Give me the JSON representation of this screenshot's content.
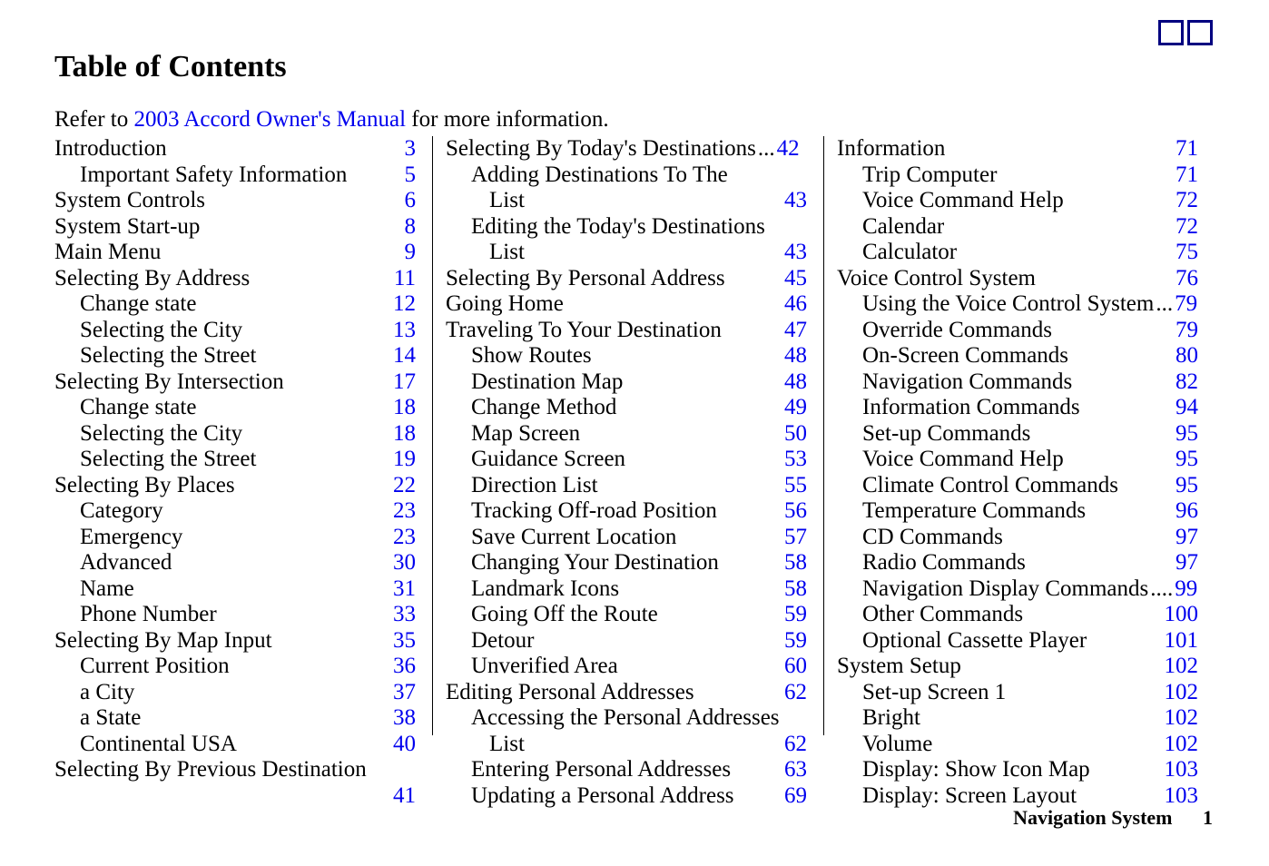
{
  "title": "Table of Contents",
  "refer_prefix": "Refer to ",
  "refer_link": "2003 Accord Owner's Manual",
  "refer_suffix": " for more information.",
  "footer_label": "Navigation System",
  "footer_page": "1",
  "columns": [
    [
      {
        "label": "Introduction",
        "page": "3",
        "indent": 0
      },
      {
        "label": "Important Safety Information",
        "page": "5",
        "indent": 1
      },
      {
        "label": "System Controls",
        "page": "6",
        "indent": 0
      },
      {
        "label": "System Start-up",
        "page": "8",
        "indent": 0
      },
      {
        "label": "Main Menu",
        "page": "9",
        "indent": 0
      },
      {
        "label": "Selecting By Address",
        "page": "11",
        "indent": 0
      },
      {
        "label": "Change state",
        "page": "12",
        "indent": 1
      },
      {
        "label": "Selecting the City",
        "page": "13",
        "indent": 1
      },
      {
        "label": "Selecting the Street",
        "page": "14",
        "indent": 1
      },
      {
        "label": "Selecting By Intersection",
        "page": "17",
        "indent": 0
      },
      {
        "label": "Change state",
        "page": "18",
        "indent": 1
      },
      {
        "label": "Selecting the City",
        "page": "18",
        "indent": 1
      },
      {
        "label": "Selecting the Street",
        "page": "19",
        "indent": 1
      },
      {
        "label": "Selecting By Places",
        "page": "22",
        "indent": 0
      },
      {
        "label": "Category",
        "page": "23",
        "indent": 1
      },
      {
        "label": "Emergency",
        "page": "23",
        "indent": 1
      },
      {
        "label": "Advanced",
        "page": "30",
        "indent": 1
      },
      {
        "label": "Name",
        "page": "31",
        "indent": 1
      },
      {
        "label": "Phone Number",
        "page": "33",
        "indent": 1
      },
      {
        "label": "Selecting By Map Input",
        "page": "35",
        "indent": 0
      },
      {
        "label": "Current Position",
        "page": "36",
        "indent": 1
      },
      {
        "label": "a City",
        "page": "37",
        "indent": 1
      },
      {
        "label": "a State",
        "page": "38",
        "indent": 1
      },
      {
        "label": "Continental USA",
        "page": "40",
        "indent": 1
      },
      {
        "label": "Selecting By Previous Destination",
        "page": "",
        "indent": 0,
        "nowrap": true,
        "nodots": true
      },
      {
        "label": "",
        "page": "41",
        "indent": 1
      }
    ],
    [
      {
        "label": "Selecting By Today's Destinations",
        "page": "42",
        "indent": 0,
        "tight": true
      },
      {
        "label": "Adding Destinations To The",
        "page": "",
        "indent": 1,
        "nodots": true
      },
      {
        "label": "List",
        "page": "43",
        "indent": 2
      },
      {
        "label": "Editing the Today's Destinations",
        "page": "",
        "indent": 1,
        "nodots": true
      },
      {
        "label": "List",
        "page": "43",
        "indent": 2
      },
      {
        "label": "Selecting By Personal Address",
        "page": "45",
        "indent": 0
      },
      {
        "label": "Going Home",
        "page": "46",
        "indent": 0
      },
      {
        "label": "Traveling To Your Destination",
        "page": "47",
        "indent": 0
      },
      {
        "label": "Show Routes",
        "page": "48",
        "indent": 1
      },
      {
        "label": "Destination Map",
        "page": "48",
        "indent": 1
      },
      {
        "label": "Change Method",
        "page": "49",
        "indent": 1
      },
      {
        "label": "Map Screen",
        "page": "50",
        "indent": 1
      },
      {
        "label": "Guidance Screen",
        "page": "53",
        "indent": 1
      },
      {
        "label": "Direction List",
        "page": "55",
        "indent": 1
      },
      {
        "label": "Tracking Off-road Position",
        "page": "56",
        "indent": 1
      },
      {
        "label": "Save Current Location",
        "page": "57",
        "indent": 1
      },
      {
        "label": "Changing Your Destination",
        "page": "58",
        "indent": 1
      },
      {
        "label": "Landmark Icons",
        "page": "58",
        "indent": 1
      },
      {
        "label": "Going Off the Route",
        "page": "59",
        "indent": 1
      },
      {
        "label": "Detour",
        "page": "59",
        "indent": 1
      },
      {
        "label": "Unverified Area",
        "page": "60",
        "indent": 1
      },
      {
        "label": "Editing Personal Addresses",
        "page": "62",
        "indent": 0
      },
      {
        "label": "Accessing the Personal Addresses",
        "page": "",
        "indent": 1,
        "nodots": true
      },
      {
        "label": "List",
        "page": "62",
        "indent": 2
      },
      {
        "label": "Entering Personal Addresses",
        "page": "63",
        "indent": 1
      },
      {
        "label": "Updating a Personal Address",
        "page": "69",
        "indent": 1
      }
    ],
    [
      {
        "label": "Information",
        "page": "71",
        "indent": 0
      },
      {
        "label": "Trip Computer",
        "page": "71",
        "indent": 1
      },
      {
        "label": "Voice Command Help",
        "page": "72",
        "indent": 1
      },
      {
        "label": "Calendar",
        "page": "72",
        "indent": 1
      },
      {
        "label": "Calculator",
        "page": "75",
        "indent": 1
      },
      {
        "label": "Voice Control System",
        "page": "76",
        "indent": 0
      },
      {
        "label": "Using the Voice Control System",
        "page": "79",
        "indent": 1,
        "tight": true
      },
      {
        "label": "Override Commands",
        "page": "79",
        "indent": 1
      },
      {
        "label": "On-Screen Commands",
        "page": "80",
        "indent": 1
      },
      {
        "label": "Navigation Commands",
        "page": "82",
        "indent": 1
      },
      {
        "label": "Information Commands",
        "page": "94",
        "indent": 1
      },
      {
        "label": "Set-up Commands",
        "page": "95",
        "indent": 1
      },
      {
        "label": "Voice Command Help",
        "page": "95",
        "indent": 1
      },
      {
        "label": "Climate Control Commands",
        "page": "95",
        "indent": 1
      },
      {
        "label": "Temperature Commands",
        "page": "96",
        "indent": 1
      },
      {
        "label": "CD Commands",
        "page": "97",
        "indent": 1
      },
      {
        "label": "Radio Commands",
        "page": "97",
        "indent": 1
      },
      {
        "label": "Navigation Display Commands",
        "page": "99",
        "indent": 1,
        "tight": true
      },
      {
        "label": "Other Commands",
        "page": "100",
        "indent": 1
      },
      {
        "label": "Optional Cassette Player",
        "page": "101",
        "indent": 1
      },
      {
        "label": "System Setup",
        "page": "102",
        "indent": 0
      },
      {
        "label": "Set-up Screen 1",
        "page": "102",
        "indent": 1
      },
      {
        "label": "Bright",
        "page": "102",
        "indent": 1
      },
      {
        "label": "Volume",
        "page": "102",
        "indent": 1
      },
      {
        "label": "Display: Show Icon Map",
        "page": "103",
        "indent": 1
      },
      {
        "label": "Display: Screen Layout",
        "page": "103",
        "indent": 1
      }
    ]
  ]
}
